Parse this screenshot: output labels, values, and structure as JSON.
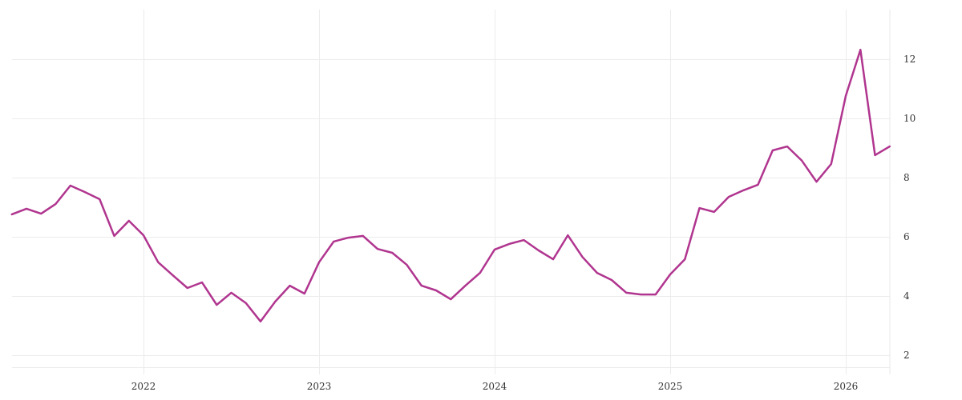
{
  "chart_data": {
    "type": "line",
    "title": "",
    "xlabel": "",
    "ylabel": "",
    "y_axis_position": "right",
    "ylim": [
      1.6,
      13.5
    ],
    "yticks": [
      2,
      4,
      6,
      8,
      10,
      12
    ],
    "xticks": [
      "2022",
      "2023",
      "2024",
      "2025",
      "2026"
    ],
    "grid": true,
    "legend": null,
    "line_color": "#b0358f",
    "series": [
      {
        "name": "series",
        "x": [
          "2021-04",
          "2021-05",
          "2021-06",
          "2021-07",
          "2021-08",
          "2021-09",
          "2021-10",
          "2021-11",
          "2021-12",
          "2022-01",
          "2022-02",
          "2022-03",
          "2022-04",
          "2022-05",
          "2022-06",
          "2022-07",
          "2022-08",
          "2022-09",
          "2022-10",
          "2022-11",
          "2022-12",
          "2023-01",
          "2023-02",
          "2023-03",
          "2023-04",
          "2023-05",
          "2023-06",
          "2023-07",
          "2023-08",
          "2023-09",
          "2023-10",
          "2023-11",
          "2023-12",
          "2024-01",
          "2024-02",
          "2024-03",
          "2024-04",
          "2024-05",
          "2024-06",
          "2024-07",
          "2024-08",
          "2024-09",
          "2024-10",
          "2024-11",
          "2024-12",
          "2025-01",
          "2025-02",
          "2025-03",
          "2025-04",
          "2025-05",
          "2025-06",
          "2025-07",
          "2025-08",
          "2025-09",
          "2025-10",
          "2025-11",
          "2025-12",
          "2026-01",
          "2026-02",
          "2026-03",
          "2026-04"
        ],
        "values": [
          6.76,
          6.95,
          6.78,
          7.11,
          7.73,
          7.51,
          7.27,
          6.03,
          6.54,
          6.05,
          5.14,
          4.7,
          4.27,
          4.46,
          3.7,
          4.11,
          3.76,
          3.14,
          3.81,
          4.35,
          4.08,
          5.14,
          5.84,
          5.97,
          6.03,
          5.59,
          5.46,
          5.05,
          4.35,
          4.19,
          3.89,
          4.35,
          4.78,
          5.57,
          5.76,
          5.89,
          5.54,
          5.24,
          6.05,
          5.32,
          4.78,
          4.54,
          4.11,
          4.05,
          4.05,
          4.73,
          5.24,
          6.97,
          6.84,
          7.35,
          7.57,
          7.76,
          8.92,
          9.05,
          8.57,
          7.86,
          8.46,
          10.76,
          12.32,
          8.76,
          9.05
        ]
      }
    ]
  },
  "axes": {
    "y_ticks": [
      "2",
      "4",
      "6",
      "8",
      "10",
      "12"
    ],
    "x_ticks": [
      "2022",
      "2023",
      "2024",
      "2025",
      "2026"
    ]
  }
}
